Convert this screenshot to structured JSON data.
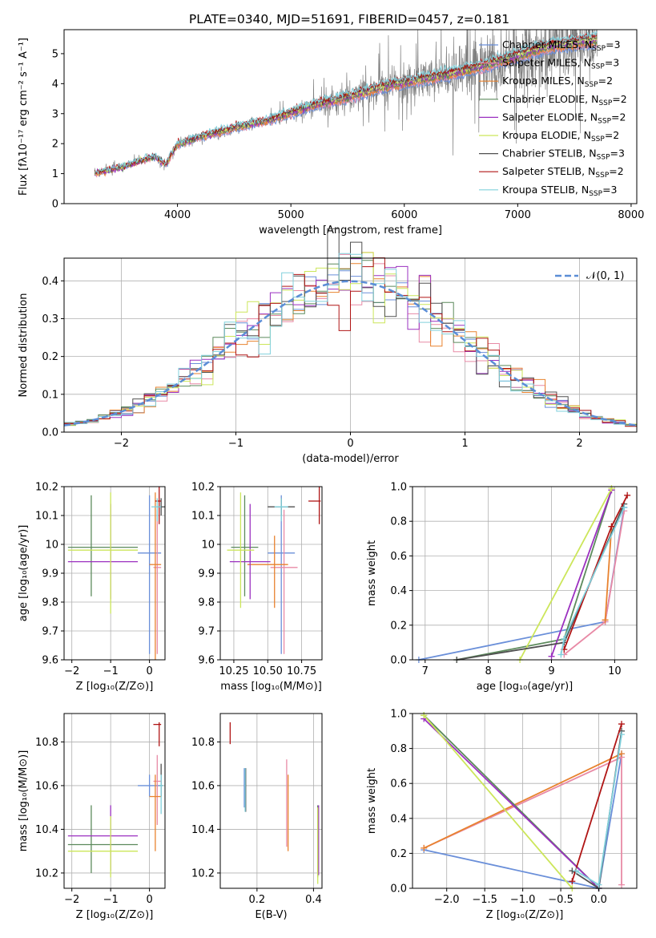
{
  "figure_title": "PLATE=0340, MJD=51691, FIBERID=0457, z=0.181",
  "colors": {
    "data": "#808080",
    "Chabrier MILES": "#6a8fd9",
    "Salpeter MILES": "#e88aa6",
    "Kroupa MILES": "#e8822e",
    "Chabrier ELODIE": "#5c8a5c",
    "Salpeter ELODIE": "#9b30c0",
    "Kroupa ELODIE": "#cce65a",
    "Chabrier STELIB": "#505050",
    "Salpeter STELIB": "#b01515",
    "Kroupa STELIB": "#80d0dc",
    "normal": "#5b8dd6"
  },
  "models": [
    {
      "key": "Chabrier MILES",
      "label": "Chabrier MILES, N",
      "sub": "SSP",
      "tail": "=3"
    },
    {
      "key": "Salpeter MILES",
      "label": "Salpeter MILES, N",
      "sub": "SSP",
      "tail": "=3"
    },
    {
      "key": "Kroupa MILES",
      "label": "Kroupa MILES, N",
      "sub": "SSP",
      "tail": "=2"
    },
    {
      "key": "Chabrier ELODIE",
      "label": "Chabrier ELODIE, N",
      "sub": "SSP",
      "tail": "=2"
    },
    {
      "key": "Salpeter ELODIE",
      "label": "Salpeter ELODIE, N",
      "sub": "SSP",
      "tail": "=2"
    },
    {
      "key": "Kroupa ELODIE",
      "label": "Kroupa ELODIE, N",
      "sub": "SSP",
      "tail": "=2"
    },
    {
      "key": "Chabrier STELIB",
      "label": "Chabrier STELIB, N",
      "sub": "SSP",
      "tail": "=3"
    },
    {
      "key": "Salpeter STELIB",
      "label": "Salpeter STELIB, N",
      "sub": "SSP",
      "tail": "=2"
    },
    {
      "key": "Kroupa STELIB",
      "label": "Kroupa STELIB, N",
      "sub": "SSP",
      "tail": "=3"
    }
  ],
  "chart_data": [
    {
      "id": "spectrum",
      "type": "line",
      "xlabel": "wavelength [Angstrom, rest frame]",
      "ylabel": "Flux [fλ10⁻¹⁷ erg cm⁻² s⁻¹ A⁻¹]",
      "xlim": [
        3000,
        8050
      ],
      "ylim": [
        0,
        5.8
      ],
      "xticks": [
        4000,
        5000,
        6000,
        7000,
        8000
      ],
      "yticks": [
        0,
        1,
        2,
        3,
        4,
        5
      ],
      "x_range_data": [
        3270,
        7700
      ],
      "continuum": [
        [
          3270,
          1.0
        ],
        [
          3500,
          1.2
        ],
        [
          3700,
          1.45
        ],
        [
          3800,
          1.55
        ],
        [
          3900,
          1.3
        ],
        [
          3950,
          1.65
        ],
        [
          4000,
          1.95
        ],
        [
          4200,
          2.2
        ],
        [
          4500,
          2.5
        ],
        [
          4800,
          2.75
        ],
        [
          5000,
          3.0
        ],
        [
          5200,
          3.25
        ],
        [
          5500,
          3.5
        ],
        [
          5800,
          3.85
        ],
        [
          6000,
          4.0
        ],
        [
          6300,
          4.2
        ],
        [
          6600,
          4.45
        ],
        [
          6800,
          4.65
        ],
        [
          7100,
          5.0
        ],
        [
          7300,
          5.2
        ],
        [
          7700,
          5.4
        ]
      ],
      "grid": false
    },
    {
      "id": "residuals",
      "type": "histogram",
      "xlabel": "(data-model)/error",
      "ylabel": "Normed distribution",
      "xlim": [
        -2.5,
        2.5
      ],
      "ylim": [
        0,
        0.46
      ],
      "xticks": [
        -2,
        -1,
        0,
        1,
        2
      ],
      "yticks": [
        0.0,
        0.1,
        0.2,
        0.3,
        0.4
      ],
      "bin_width": 0.1,
      "reference_curve": {
        "name": "𝒩(0, 1)",
        "mean": 0,
        "sigma": 1,
        "legend": "top-right"
      },
      "grid": true
    },
    {
      "id": "age-vs-Z",
      "type": "errorbar",
      "xlabel": "Z [log₁₀(Z/Z⊙)]",
      "ylabel": "age  [log₁₀(age/yr)]",
      "xlim": [
        -2.2,
        0.4
      ],
      "ylim": [
        9.6,
        10.2
      ],
      "xticks": [
        -2,
        -1,
        0
      ],
      "yticks": [
        9.6,
        9.7,
        9.8,
        9.9,
        10.0,
        10.1,
        10.2
      ],
      "points": [
        {
          "model": "Chabrier MILES",
          "x": 0.0,
          "y": 9.97,
          "xerr": [
            0.3,
            0.3
          ],
          "yerr": [
            0.35,
            0.2
          ]
        },
        {
          "model": "Salpeter MILES",
          "x": 0.2,
          "y": 9.92,
          "xerr": [
            0.1,
            0.1
          ],
          "yerr": [
            0.3,
            0.2
          ]
        },
        {
          "model": "Kroupa MILES",
          "x": 0.15,
          "y": 9.93,
          "xerr": [
            0.15,
            0.15
          ],
          "yerr": [
            0.33,
            0.25
          ]
        },
        {
          "model": "Chabrier ELODIE",
          "x": -1.5,
          "y": 9.99,
          "xerr": [
            0.6,
            1.2
          ],
          "yerr": [
            0.17,
            0.18
          ]
        },
        {
          "model": "Salpeter ELODIE",
          "x": -1.0,
          "y": 9.94,
          "xerr": [
            1.1,
            0.7
          ],
          "yerr": [
            0.13,
            0.2
          ]
        },
        {
          "model": "Kroupa ELODIE",
          "x": -1.0,
          "y": 9.98,
          "xerr": [
            1.1,
            0.7
          ],
          "yerr": [
            0.22,
            0.2
          ]
        },
        {
          "model": "Chabrier STELIB",
          "x": 0.3,
          "y": 10.13,
          "xerr": [
            0.1,
            0.1
          ],
          "yerr": [
            0.03,
            0.03
          ]
        },
        {
          "model": "Salpeter STELIB",
          "x": 0.25,
          "y": 10.15,
          "xerr": [
            0.1,
            0.05
          ],
          "yerr": [
            0.08,
            0.05
          ]
        },
        {
          "model": "Kroupa STELIB",
          "x": 0.2,
          "y": 10.13,
          "xerr": [
            0.15,
            0.1
          ],
          "yerr": [
            0.05,
            0.03
          ]
        }
      ],
      "grid": true
    },
    {
      "id": "age-vs-mass",
      "type": "errorbar",
      "xlabel": "mass [log₁₀(M/M⊙)]",
      "ylabel": "",
      "xlim": [
        10.15,
        10.9
      ],
      "ylim": [
        9.6,
        10.2
      ],
      "xticks": [
        10.25,
        10.5,
        10.75
      ],
      "xticklabels": [
        "10.25",
        "10.50",
        "10.75"
      ],
      "yticks": [
        9.6,
        9.7,
        9.8,
        9.9,
        10.0,
        10.1,
        10.2
      ],
      "points": [
        {
          "model": "Chabrier MILES",
          "x": 10.6,
          "y": 9.97,
          "xerr": [
            0.1,
            0.1
          ],
          "yerr": [
            0.35,
            0.2
          ]
        },
        {
          "model": "Salpeter MILES",
          "x": 10.62,
          "y": 9.92,
          "xerr": [
            0.1,
            0.1
          ],
          "yerr": [
            0.3,
            0.2
          ]
        },
        {
          "model": "Kroupa MILES",
          "x": 10.55,
          "y": 9.93,
          "xerr": [
            0.2,
            0.1
          ],
          "yerr": [
            0.15,
            0.1
          ]
        },
        {
          "model": "Chabrier ELODIE",
          "x": 10.33,
          "y": 9.99,
          "xerr": [
            0.1,
            0.1
          ],
          "yerr": [
            0.17,
            0.18
          ]
        },
        {
          "model": "Salpeter ELODIE",
          "x": 10.37,
          "y": 9.94,
          "xerr": [
            0.15,
            0.15
          ],
          "yerr": [
            0.13,
            0.2
          ]
        },
        {
          "model": "Kroupa ELODIE",
          "x": 10.3,
          "y": 9.98,
          "xerr": [
            0.1,
            0.1
          ],
          "yerr": [
            0.2,
            0.2
          ]
        },
        {
          "model": "Chabrier STELIB",
          "x": 10.6,
          "y": 10.13,
          "xerr": [
            0.1,
            0.1
          ],
          "yerr": [
            0.03,
            0.03
          ]
        },
        {
          "model": "Salpeter STELIB",
          "x": 10.88,
          "y": 10.15,
          "xerr": [
            0.08,
            0.01
          ],
          "yerr": [
            0.08,
            0.05
          ]
        },
        {
          "model": "Kroupa STELIB",
          "x": 10.6,
          "y": 10.13,
          "xerr": [
            0.05,
            0.05
          ],
          "yerr": [
            0.05,
            0.03
          ]
        }
      ],
      "grid": true
    },
    {
      "id": "weight-vs-age",
      "type": "line",
      "xlabel": "age  [log₁₀(age/yr)]",
      "ylabel": "mass weight",
      "xlim": [
        6.8,
        10.35
      ],
      "ylim": [
        0,
        1
      ],
      "xticks": [
        7,
        8,
        9,
        10
      ],
      "yticks": [
        0.0,
        0.2,
        0.4,
        0.6,
        0.8,
        1.0
      ],
      "series": [
        {
          "model": "Chabrier MILES",
          "x": [
            6.9,
            9.85,
            10.15
          ],
          "y": [
            0.0,
            0.22,
            0.88
          ]
        },
        {
          "model": "Salpeter MILES",
          "x": [
            9.2,
            9.85,
            10.15
          ],
          "y": [
            0.03,
            0.22,
            0.86
          ]
        },
        {
          "model": "Kroupa MILES",
          "x": [
            9.85,
            9.95
          ],
          "y": [
            0.23,
            0.77
          ]
        },
        {
          "model": "Chabrier ELODIE",
          "x": [
            7.5,
            9.2,
            9.95
          ],
          "y": [
            0.0,
            0.12,
            0.98
          ]
        },
        {
          "model": "Salpeter ELODIE",
          "x": [
            9.0,
            9.95
          ],
          "y": [
            0.02,
            0.98
          ]
        },
        {
          "model": "Kroupa ELODIE",
          "x": [
            8.5,
            9.95
          ],
          "y": [
            0.0,
            0.99
          ]
        },
        {
          "model": "Chabrier STELIB",
          "x": [
            7.5,
            9.2,
            10.15
          ],
          "y": [
            0.0,
            0.1,
            0.9
          ]
        },
        {
          "model": "Salpeter STELIB",
          "x": [
            9.2,
            9.95,
            10.2
          ],
          "y": [
            0.06,
            0.77,
            0.95
          ]
        },
        {
          "model": "Kroupa STELIB",
          "x": [
            9.15,
            9.2,
            10.15
          ],
          "y": [
            0.03,
            0.12,
            0.88
          ]
        }
      ],
      "grid": true
    },
    {
      "id": "mass-vs-Z",
      "type": "errorbar",
      "xlabel": "Z [log₁₀(Z/Z⊙)]",
      "ylabel": "mass [log₁₀(M/M⊙)]",
      "xlim": [
        -2.2,
        0.4
      ],
      "ylim": [
        10.13,
        10.93
      ],
      "xticks": [
        -2,
        -1,
        0
      ],
      "yticks": [
        10.2,
        10.4,
        10.6,
        10.8
      ],
      "points": [
        {
          "model": "Chabrier MILES",
          "x": 0.0,
          "y": 10.6,
          "xerr": [
            0.3,
            0.3
          ],
          "yerr": [
            0.05,
            0.05
          ]
        },
        {
          "model": "Salpeter MILES",
          "x": 0.2,
          "y": 10.62,
          "xerr": [
            0.1,
            0.1
          ],
          "yerr": [
            0.2,
            0.12
          ]
        },
        {
          "model": "Kroupa MILES",
          "x": 0.15,
          "y": 10.55,
          "xerr": [
            0.15,
            0.15
          ],
          "yerr": [
            0.25,
            0.1
          ]
        },
        {
          "model": "Chabrier ELODIE",
          "x": -1.5,
          "y": 10.33,
          "xerr": [
            0.6,
            1.2
          ],
          "yerr": [
            0.13,
            0.18
          ]
        },
        {
          "model": "Salpeter ELODIE",
          "x": -1.0,
          "y": 10.37,
          "xerr": [
            1.1,
            0.7
          ],
          "yerr": [
            0.16,
            0.14
          ]
        },
        {
          "model": "Kroupa ELODIE",
          "x": -1.0,
          "y": 10.3,
          "xerr": [
            1.1,
            0.7
          ],
          "yerr": [
            0.12,
            0.16
          ]
        },
        {
          "model": "Chabrier STELIB",
          "x": 0.3,
          "y": 10.6,
          "xerr": [
            0.05,
            0.05
          ],
          "yerr": [
            0.05,
            0.1
          ]
        },
        {
          "model": "Salpeter STELIB",
          "x": 0.25,
          "y": 10.88,
          "xerr": [
            0.15,
            0.05
          ],
          "yerr": [
            0.1,
            0.01
          ]
        },
        {
          "model": "Kroupa STELIB",
          "x": 0.3,
          "y": 10.6,
          "xerr": [
            0.05,
            0.05
          ],
          "yerr": [
            0.13,
            0.05
          ]
        }
      ],
      "grid": true
    },
    {
      "id": "mass-vs-ebv",
      "type": "errorbar",
      "xlabel": "E(B-V)",
      "ylabel": "",
      "xlim": [
        0.07,
        0.43
      ],
      "ylim": [
        10.13,
        10.93
      ],
      "xticks": [
        0.2,
        0.4
      ],
      "yticks": [
        10.2,
        10.4,
        10.6,
        10.8
      ],
      "points": [
        {
          "model": "Chabrier MILES",
          "x": 0.155,
          "y": 10.6,
          "yerr": [
            0.1,
            0.08
          ]
        },
        {
          "model": "Salpeter MILES",
          "x": 0.305,
          "y": 10.62,
          "yerr": [
            0.3,
            0.1
          ]
        },
        {
          "model": "Kroupa MILES",
          "x": 0.31,
          "y": 10.55,
          "yerr": [
            0.25,
            0.1
          ]
        },
        {
          "model": "Chabrier ELODIE",
          "x": 0.415,
          "y": 10.33,
          "yerr": [
            0.15,
            0.18
          ]
        },
        {
          "model": "Salpeter ELODIE",
          "x": 0.418,
          "y": 10.37,
          "yerr": [
            0.18,
            0.14
          ]
        },
        {
          "model": "Kroupa ELODIE",
          "x": 0.415,
          "y": 10.3,
          "yerr": [
            0.15,
            0.2
          ]
        },
        {
          "model": "Chabrier STELIB",
          "x": 0.16,
          "y": 10.6,
          "yerr": [
            0.12,
            0.08
          ]
        },
        {
          "model": "Salpeter STELIB",
          "x": 0.105,
          "y": 10.85,
          "yerr": [
            0.06,
            0.04
          ]
        },
        {
          "model": "Kroupa STELIB",
          "x": 0.158,
          "y": 10.58,
          "yerr": [
            0.1,
            0.1
          ]
        }
      ],
      "grid": true
    },
    {
      "id": "weight-vs-Z",
      "type": "line",
      "xlabel": "Z [log₁₀(Z/Z⊙)]",
      "ylabel": "mass weight",
      "xlim": [
        -2.45,
        0.5
      ],
      "ylim": [
        0,
        1
      ],
      "xticks": [
        -2.0,
        -1.5,
        -1.0,
        -0.5,
        0.0
      ],
      "xticklabels": [
        "−2.0",
        "−1.5",
        "−1.0",
        "−0.5",
        "0.0"
      ],
      "yticks": [
        0.0,
        0.2,
        0.4,
        0.6,
        0.8,
        1.0
      ],
      "series": [
        {
          "model": "Chabrier MILES",
          "x": [
            -2.3,
            0.0,
            0.3
          ],
          "y": [
            0.22,
            0.0,
            0.77
          ]
        },
        {
          "model": "Salpeter MILES",
          "x": [
            -2.3,
            0.3,
            0.3
          ],
          "y": [
            0.23,
            0.75,
            0.02
          ]
        },
        {
          "model": "Kroupa MILES",
          "x": [
            -2.3,
            0.3
          ],
          "y": [
            0.23,
            0.77
          ]
        },
        {
          "model": "Chabrier ELODIE",
          "x": [
            -2.3,
            0.0
          ],
          "y": [
            0.99,
            0.0
          ]
        },
        {
          "model": "Salpeter ELODIE",
          "x": [
            -2.3,
            0.0
          ],
          "y": [
            0.97,
            0.0
          ]
        },
        {
          "model": "Kroupa ELODIE",
          "x": [
            -2.3,
            -0.35
          ],
          "y": [
            0.99,
            0.0
          ]
        },
        {
          "model": "Chabrier STELIB",
          "x": [
            -0.35,
            0.0,
            0.3
          ],
          "y": [
            0.1,
            0.0,
            0.9
          ]
        },
        {
          "model": "Salpeter STELIB",
          "x": [
            -0.35,
            0.3
          ],
          "y": [
            0.04,
            0.94
          ]
        },
        {
          "model": "Kroupa STELIB",
          "x": [
            -0.3,
            0.0,
            0.3
          ],
          "y": [
            0.1,
            0.02,
            0.88
          ]
        }
      ],
      "grid": true
    }
  ]
}
